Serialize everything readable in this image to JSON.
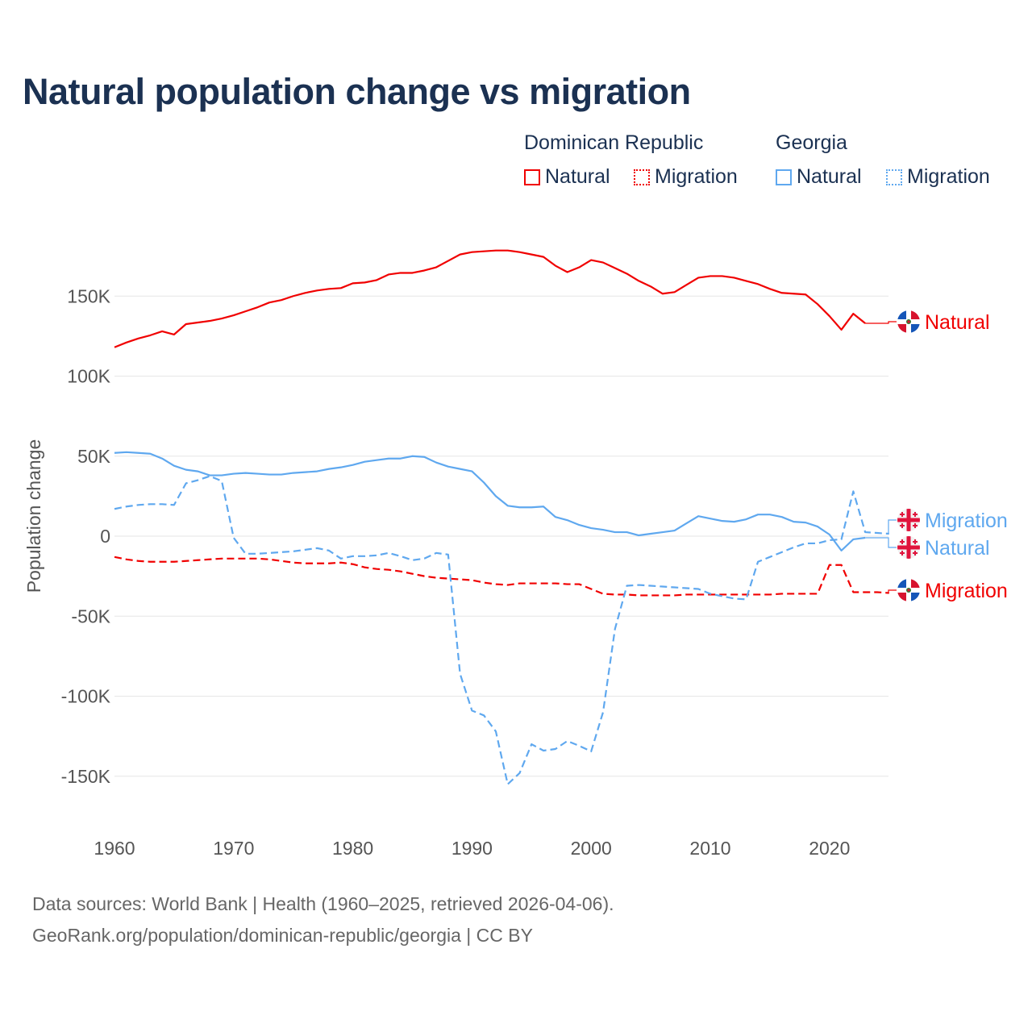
{
  "title": "Natural population change vs migration",
  "legend": {
    "groups": [
      {
        "name": "Dominican Republic",
        "items": [
          "Natural",
          "Migration"
        ]
      },
      {
        "name": "Georgia",
        "items": [
          "Natural",
          "Migration"
        ]
      }
    ]
  },
  "colors": {
    "dominican": "#f00000",
    "georgia": "#5fa8ef",
    "title": "#1b3152",
    "grid": "#e6e6e6"
  },
  "end_labels": {
    "dr_natural": "Natural",
    "ge_migration": "Migration",
    "ge_natural": "Natural",
    "dr_migration": "Migration"
  },
  "footer": {
    "line1": "Data sources: World Bank | Health (1960–2025, retrieved 2026-04-06).",
    "line2": "GeoRank.org/population/dominican-republic/georgia | CC BY"
  },
  "chart_data": {
    "type": "line",
    "title": "Natural population change vs migration",
    "xlabel": "",
    "ylabel": "Population change",
    "xlim": [
      1960,
      2025
    ],
    "ylim": [
      -175000,
      175000
    ],
    "x_ticks": [
      1960,
      1970,
      1980,
      1990,
      2000,
      2010,
      2020
    ],
    "x_tick_labels": [
      "1960",
      "1970",
      "1980",
      "1990",
      "2000",
      "2010",
      "2020"
    ],
    "y_ticks": [
      150000,
      100000,
      50000,
      0,
      -50000,
      -100000,
      -150000
    ],
    "y_tick_labels": [
      "150K",
      "100K",
      "50K",
      "0",
      "-50K",
      "-100K",
      "-150K"
    ],
    "grid": true,
    "legend_position": "top-right",
    "units": "thousands",
    "start_year": 1960,
    "series": [
      {
        "id": "dr_natural",
        "name": "Dominican Republic Natural",
        "color": "#f00000",
        "dash": "solid",
        "values": [
          118,
          121,
          123.5,
          125.5,
          128,
          126,
          132.5,
          133.5,
          134.5,
          136,
          138,
          140.5,
          143,
          146,
          147.5,
          150,
          152,
          153.5,
          154.5,
          155,
          158,
          158.5,
          160,
          163.5,
          164.5,
          164.5,
          166,
          168,
          172,
          176,
          177.5,
          178,
          178.5,
          178.5,
          177.5,
          176,
          174.5,
          169,
          165,
          168,
          172.5,
          171,
          167.5,
          164,
          159.5,
          156,
          151.5,
          152.5,
          157,
          161.5,
          162.5,
          162.5,
          161.5,
          159.5,
          157.5,
          154.5,
          152,
          151.5,
          151,
          145,
          137.5,
          129,
          139,
          133
        ]
      },
      {
        "id": "dr_migration",
        "name": "Dominican Republic Migration",
        "color": "#f00000",
        "dash": "dashed",
        "values": [
          -13,
          -14.5,
          -15.5,
          -16,
          -16,
          -16,
          -15.5,
          -15,
          -14.5,
          -14,
          -14,
          -14,
          -14,
          -14.5,
          -15.5,
          -16.5,
          -17,
          -17,
          -17,
          -16.5,
          -17.5,
          -19.5,
          -20.5,
          -21,
          -22,
          -23.5,
          -25,
          -26,
          -26.5,
          -27,
          -27.5,
          -29,
          -30,
          -30.5,
          -29.5,
          -29.5,
          -29.5,
          -29.5,
          -30,
          -30,
          -33,
          -36,
          -36.5,
          -36.5,
          -37,
          -37,
          -37,
          -37,
          -36.5,
          -36.5,
          -36.5,
          -36.5,
          -36.5,
          -36.5,
          -36.5,
          -36.5,
          -36,
          -36,
          -36,
          -36,
          -18,
          -18,
          -35,
          -35,
          -35,
          -35.5
        ]
      },
      {
        "id": "ge_natural",
        "name": "Georgia Natural",
        "color": "#5fa8ef",
        "dash": "solid",
        "values": [
          52,
          52.5,
          52,
          51.5,
          48.5,
          44,
          41.5,
          40.5,
          38,
          38,
          39,
          39.5,
          39,
          38.5,
          38.5,
          39.5,
          40,
          40.5,
          42,
          43,
          44.5,
          46.5,
          47.5,
          48.5,
          48.5,
          50,
          49.5,
          46,
          43.5,
          42,
          40.5,
          33.5,
          25,
          19,
          18,
          18,
          18.5,
          12,
          10,
          7,
          5,
          4,
          2.5,
          2.5,
          0.5,
          1.5,
          2.5,
          3.5,
          8,
          12.5,
          11,
          9.5,
          9,
          10.5,
          13.5,
          13.5,
          12,
          9,
          8.5,
          6,
          1,
          -9,
          -2,
          -1
        ]
      },
      {
        "id": "ge_migration",
        "name": "Georgia Migration",
        "color": "#5fa8ef",
        "dash": "dashed",
        "values": [
          17,
          18.5,
          19.5,
          20,
          20,
          19.5,
          33,
          35,
          37.5,
          34.5,
          -1,
          -11,
          -11,
          -10.5,
          -10,
          -9.5,
          -8.5,
          -7.5,
          -9,
          -14,
          -12.5,
          -12.5,
          -12,
          -10.5,
          -12.5,
          -15,
          -14,
          -10.5,
          -11.5,
          -86,
          -109,
          -112,
          -122,
          -155,
          -148,
          -130,
          -134,
          -133,
          -128,
          -131,
          -134.5,
          -110,
          -58,
          -31,
          -30.5,
          -31,
          -31.5,
          -32,
          -32.5,
          -33,
          -36,
          -37.5,
          -39,
          -39.5,
          -16,
          -13,
          -10,
          -7,
          -4.5,
          -4.5,
          -2.5,
          -2,
          28,
          2.5,
          2,
          1.5
        ]
      }
    ]
  }
}
